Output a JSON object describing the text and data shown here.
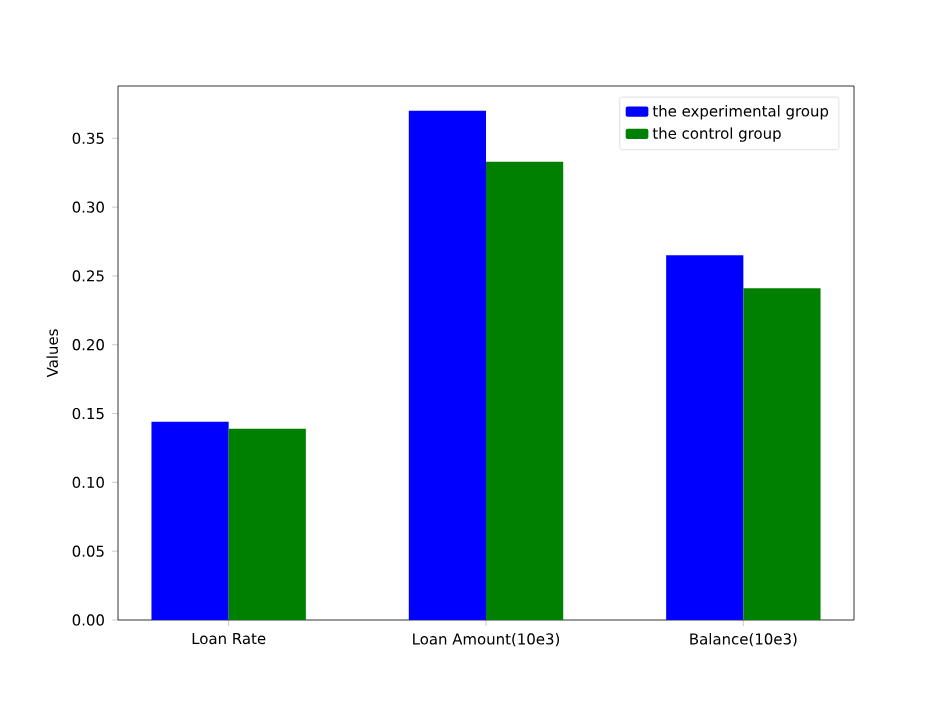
{
  "chart_data": {
    "type": "bar",
    "ylabel": "Values",
    "categories": [
      "Loan Rate",
      "Loan Amount(10e3)",
      "Balance(10e3)"
    ],
    "series": [
      {
        "name": "the experimental group",
        "color": "#0000ff",
        "values": [
          0.144,
          0.37,
          0.265
        ]
      },
      {
        "name": "the control group",
        "color": "#008000",
        "values": [
          0.139,
          0.333,
          0.241
        ]
      }
    ],
    "ylim": [
      0,
      0.388
    ],
    "yticks": [
      {
        "value": 0,
        "label": "0.00"
      },
      0.05,
      {
        "value": 0.1,
        "label": "0.10"
      },
      0.15,
      {
        "value": 0.2,
        "label": "0.20"
      },
      0.25,
      {
        "value": 0.3,
        "label": "0.30"
      },
      0.35
    ],
    "legend": "top right",
    "grid": false
  }
}
